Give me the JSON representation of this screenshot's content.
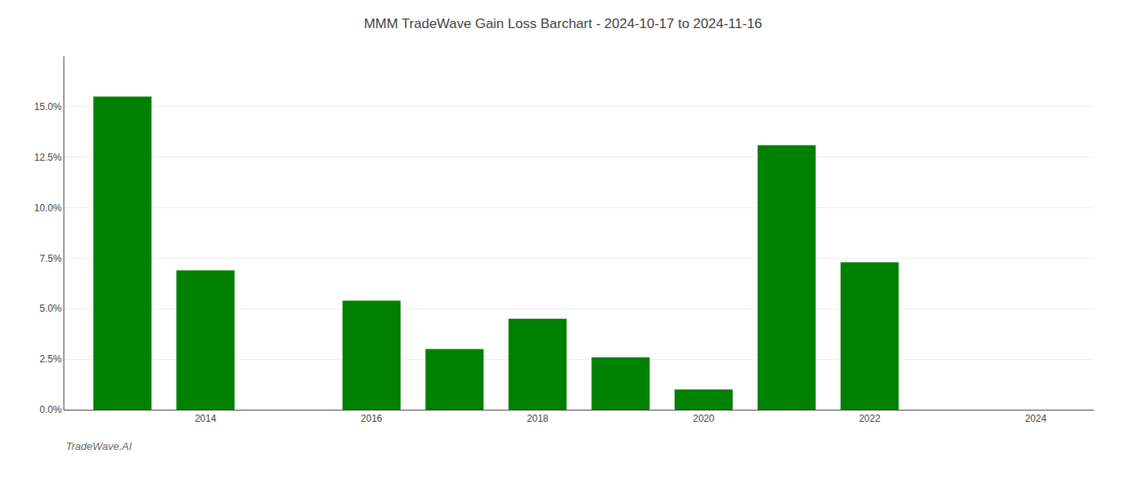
{
  "chart_data": {
    "type": "bar",
    "title": "MMM TradeWave Gain Loss Barchart - 2024-10-17 to 2024-11-16",
    "annotations": [
      "TradeWave.AI"
    ],
    "x": [
      2013,
      2014,
      2016,
      2017,
      2018,
      2019,
      2020,
      2021,
      2022,
      2023
    ],
    "values": [
      0.155,
      0.069,
      0.054,
      0.03,
      0.045,
      0.026,
      0.01,
      0.131,
      0.073,
      0.0
    ],
    "color": "#008000",
    "xlim": [
      2012.3,
      2024.7
    ],
    "xticks": [
      2014,
      2016,
      2018,
      2020,
      2022,
      2024
    ],
    "ylim": [
      0,
      0.175
    ],
    "yticks": [
      {
        "value": 0.0,
        "label": "0.0%"
      },
      {
        "value": 0.025,
        "label": "2.5%"
      },
      {
        "value": 0.05,
        "label": "5.0%"
      },
      {
        "value": 0.075,
        "label": "7.5%"
      },
      {
        "value": 0.1,
        "label": "10.0%"
      },
      {
        "value": 0.125,
        "label": "12.5%"
      },
      {
        "value": 0.15,
        "label": "15.0%"
      }
    ],
    "grid": true
  }
}
